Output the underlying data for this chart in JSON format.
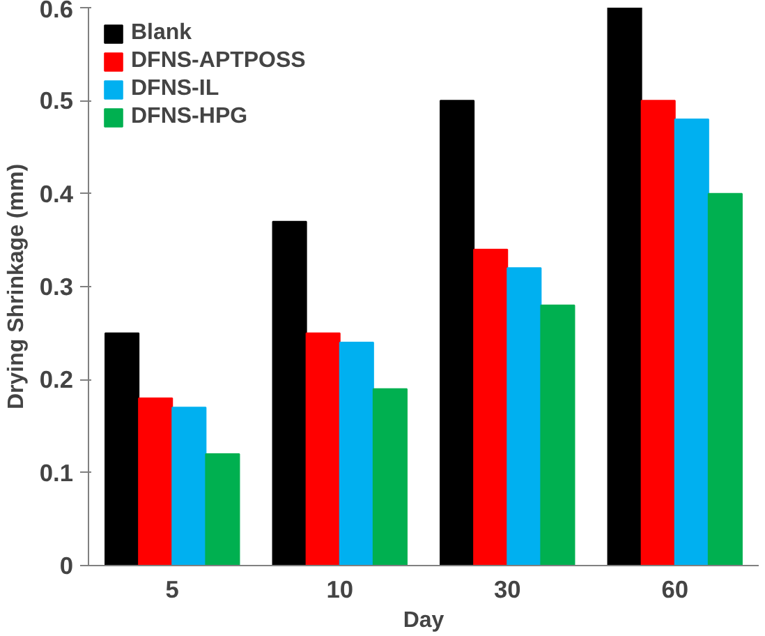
{
  "chart_data": {
    "type": "bar",
    "xlabel": "Day",
    "ylabel": "Drying Shrinkage (mm)",
    "categories": [
      "5",
      "10",
      "30",
      "60"
    ],
    "series": [
      {
        "name": "Blank",
        "color": "#000000",
        "values": [
          0.25,
          0.37,
          0.5,
          0.6
        ]
      },
      {
        "name": "DFNS-APTPOSS",
        "color": "#ff0000",
        "values": [
          0.18,
          0.25,
          0.34,
          0.5
        ]
      },
      {
        "name": "DFNS-IL",
        "color": "#00b0f0",
        "values": [
          0.17,
          0.24,
          0.32,
          0.48
        ]
      },
      {
        "name": "DFNS-HPG",
        "color": "#00b050",
        "values": [
          0.12,
          0.19,
          0.28,
          0.4
        ]
      }
    ],
    "ylim": [
      0,
      0.6
    ],
    "yticks": [
      0,
      0.1,
      0.2,
      0.3,
      0.4,
      0.5,
      0.6
    ],
    "grid": false,
    "legend": "top left"
  }
}
